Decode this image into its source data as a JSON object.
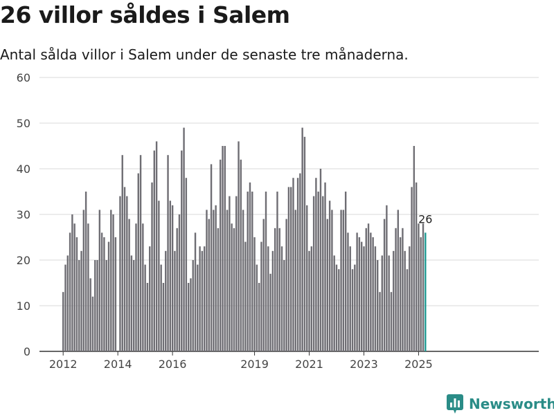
{
  "title": "26 villor såldes i Salem",
  "subtitle": "Antal sålda villor i Salem under de senaste tre månaderna.",
  "brand": {
    "name": "Newsworthy",
    "icon": "bar-chart-logo-icon",
    "color": "#2a8c87"
  },
  "colors": {
    "bar": "#6e6d73",
    "highlight": "#1f9a93",
    "grid": "#d9d9d9"
  },
  "chart_data": {
    "type": "bar",
    "start": "2012-01",
    "x_ticks": [
      "2012",
      "2014",
      "2016",
      "2019",
      "2021",
      "2023",
      "2025"
    ],
    "ylim": [
      0,
      60
    ],
    "y_ticks": [
      0,
      10,
      20,
      30,
      40,
      50,
      60
    ],
    "grid": true,
    "highlight_label": "26",
    "values": [
      13,
      19,
      21,
      26,
      30,
      28,
      25,
      20,
      22,
      31,
      35,
      28,
      16,
      12,
      20,
      20,
      31,
      26,
      25,
      20,
      24,
      31,
      30,
      25,
      0,
      34,
      43,
      36,
      34,
      29,
      21,
      20,
      28,
      39,
      43,
      28,
      19,
      15,
      23,
      37,
      44,
      46,
      33,
      19,
      15,
      22,
      43,
      33,
      32,
      22,
      27,
      30,
      44,
      49,
      38,
      15,
      16,
      20,
      26,
      19,
      23,
      22,
      23,
      31,
      29,
      41,
      31,
      32,
      27,
      42,
      45,
      45,
      31,
      34,
      28,
      27,
      34,
      46,
      42,
      31,
      24,
      35,
      37,
      35,
      25,
      19,
      15,
      24,
      29,
      35,
      23,
      17,
      22,
      27,
      35,
      27,
      23,
      20,
      29,
      36,
      36,
      38,
      31,
      38,
      39,
      49,
      47,
      32,
      22,
      23,
      34,
      38,
      35,
      40,
      34,
      37,
      29,
      33,
      31,
      21,
      19,
      18,
      31,
      31,
      35,
      26,
      23,
      18,
      19,
      26,
      25,
      24,
      23,
      27,
      28,
      26,
      25,
      23,
      20,
      13,
      21,
      29,
      32,
      21,
      13,
      22,
      27,
      31,
      25,
      27,
      22,
      18,
      23,
      36,
      45,
      37,
      28,
      25,
      28,
      26
    ]
  }
}
